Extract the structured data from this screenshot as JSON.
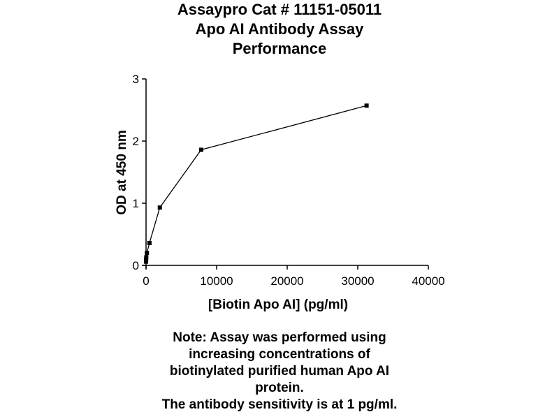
{
  "chart_data": {
    "type": "line",
    "title": [
      "Assaypro Cat # 11151-05011",
      "Apo AI Antibody Assay",
      "Performance"
    ],
    "xlabel": "[Biotin Apo AI] (pg/ml)",
    "ylabel": "OD at 450 nm",
    "xlim": [
      0,
      40000
    ],
    "ylim": [
      0,
      3
    ],
    "xticks": [
      0,
      10000,
      20000,
      30000,
      40000
    ],
    "yticks": [
      0,
      1,
      2,
      3
    ],
    "grid": false,
    "series": [
      {
        "x": [
          31250,
          7812,
          1953,
          488,
          122,
          30.5,
          7.6,
          1.9
        ],
        "y": [
          2.57,
          1.86,
          0.93,
          0.36,
          0.2,
          0.13,
          0.09,
          0.06
        ]
      }
    ],
    "colors": {
      "line": "#000000",
      "marker": "#000000"
    }
  },
  "note": [
    "Note: Assay was performed using",
    "increasing concentrations of",
    "biotinylated purified human Apo AI",
    "protein.",
    "The antibody sensitivity is at 1 pg/ml."
  ]
}
